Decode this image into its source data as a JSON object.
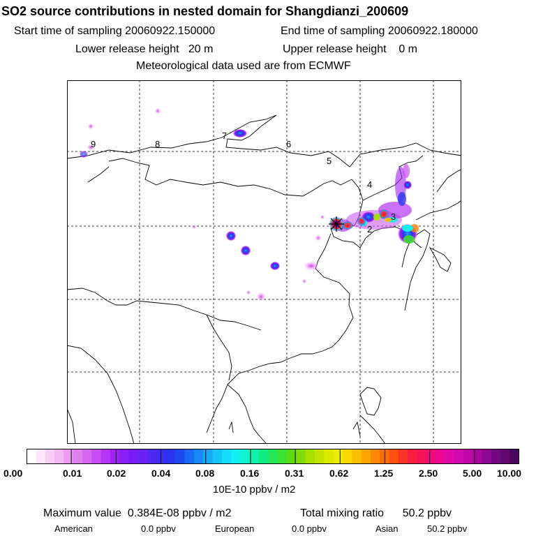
{
  "header": {
    "title": "SO2 source contributions in nested domain for Shangdianzi_200609",
    "start_time": "Start time of sampling 20060922.150000",
    "end_time": "End time of sampling 20060922.180000",
    "lower_height": "Lower release height   20 m",
    "upper_height": "Upper release height    0 m",
    "met_data": "Meteorological data used are from ECMWF"
  },
  "map": {
    "region_labels": [
      "9",
      "8",
      "7",
      "6",
      "5",
      "4",
      "3",
      "2"
    ],
    "station_marker": "star-marker"
  },
  "colorbar": {
    "tick_labels": [
      "0.00",
      "0.01",
      "0.02",
      "0.04",
      "0.08",
      "0.16",
      "0.31",
      "0.62",
      "1.25",
      "2.50",
      "5.00",
      "10.00"
    ],
    "colors": [
      "#ffffff",
      "#fde8fb",
      "#f8d0f6",
      "#f3b6f2",
      "#eb9cf0",
      "#e080ee",
      "#d466f0",
      "#c84ef2",
      "#b436f4",
      "#a020f5",
      "#8c1ef7",
      "#7a1cf5",
      "#6a22f5",
      "#5028f2",
      "#3c2ef0",
      "#2a34f0",
      "#1e48f2",
      "#1a68f4",
      "#1888f6",
      "#18a8f8",
      "#16c4fa",
      "#14dcfa",
      "#12f0f0",
      "#10f4d0",
      "#10f0a8",
      "#10ec80",
      "#20e858",
      "#3ce030",
      "#5cdc10",
      "#80dc08",
      "#a4e000",
      "#c4e400",
      "#dee800",
      "#f0ec00",
      "#f8d800",
      "#fcc000",
      "#fca400",
      "#fc8800",
      "#fc6c00",
      "#fc5010",
      "#fc3428",
      "#f81c40",
      "#f41458",
      "#f00c78",
      "#ec0894",
      "#e008a8",
      "#d008b0",
      "#bc08a8",
      "#a4089c",
      "#8c0890",
      "#740880",
      "#600870",
      "#480860"
    ],
    "units": "10E-10 ppbv / m2"
  },
  "summary": {
    "max_value": "Maximum value  0.384E-08 ppbv / m2",
    "total": "Total mixing ratio      50.2 ppbv",
    "american_label": "American",
    "american_value": "0.0 ppbv",
    "european_label": "European",
    "european_value": "0.0 ppbv",
    "asian_label": "Asian",
    "asian_value": "50.2 ppbv"
  }
}
